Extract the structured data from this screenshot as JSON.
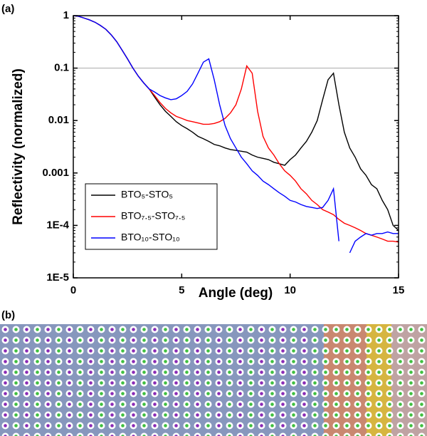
{
  "chart_data": {
    "type": "line",
    "panel_labels": [
      "(a)",
      "(b)"
    ],
    "x_label": "Angle (deg)",
    "y_label": "Reflectivity (normalized)",
    "log_y": true,
    "reference_line": 0.1,
    "legend": "lower left",
    "xlim": [
      0,
      15
    ],
    "xticks": [
      0,
      5,
      10,
      15
    ],
    "ylim": [
      1e-05,
      1
    ],
    "yticks": [
      {
        "value": 1e-05,
        "label": "1E-5"
      },
      {
        "value": 0.0001,
        "label": "1E-4"
      },
      0.001,
      0.01,
      0.1,
      1
    ],
    "x": [
      0,
      0.25,
      0.5,
      0.75,
      1,
      1.25,
      1.5,
      1.75,
      2,
      2.25,
      2.5,
      2.75,
      3,
      3.25,
      3.5,
      3.75,
      4,
      4.25,
      4.5,
      4.75,
      5,
      5.25,
      5.5,
      5.75,
      6,
      6.25,
      6.5,
      6.75,
      7,
      7.25,
      7.5,
      7.75,
      8,
      8.25,
      8.5,
      8.75,
      9,
      9.25,
      9.5,
      9.75,
      10,
      10.25,
      10.5,
      10.75,
      11,
      11.25,
      11.5,
      11.75,
      12,
      12.25,
      12.5,
      12.75,
      13,
      13.25,
      13.5,
      13.75,
      14,
      14.25,
      14.5,
      14.75,
      15
    ],
    "series": [
      {
        "name": "BTO₅-STO₅",
        "color": "#000000",
        "values": [
          1,
          0.97,
          0.9,
          0.83,
          0.75,
          0.65,
          0.55,
          0.43,
          0.32,
          0.22,
          0.15,
          0.1,
          0.07,
          0.052,
          0.04,
          0.028,
          0.02,
          0.015,
          0.012,
          0.0095,
          0.008,
          0.007,
          0.006,
          0.005,
          0.0045,
          0.004,
          0.0035,
          0.0033,
          0.003,
          0.0028,
          0.0027,
          0.0026,
          0.0025,
          0.0022,
          0.002,
          0.0019,
          0.0018,
          0.0016,
          0.0015,
          0.0014,
          0.0018,
          0.0022,
          0.003,
          0.004,
          0.006,
          0.01,
          0.025,
          0.06,
          0.08,
          0.02,
          0.006,
          0.003,
          0.002,
          0.0012,
          0.0009,
          0.0006,
          0.0005,
          0.0003,
          0.0002,
          0.0001,
          8e-05
        ]
      },
      {
        "name": "BTO₇.₅-STO₇.₅",
        "color": "#ff0000",
        "values": [
          1,
          0.97,
          0.9,
          0.83,
          0.75,
          0.65,
          0.55,
          0.43,
          0.32,
          0.22,
          0.15,
          0.1,
          0.07,
          0.052,
          0.04,
          0.03,
          0.022,
          0.017,
          0.014,
          0.012,
          0.011,
          0.01,
          0.0095,
          0.009,
          0.0085,
          0.0085,
          0.0088,
          0.0095,
          0.011,
          0.014,
          0.02,
          0.04,
          0.11,
          0.08,
          0.015,
          0.005,
          0.003,
          0.0022,
          0.0015,
          0.0011,
          0.0009,
          0.0007,
          0.0005,
          0.0004,
          0.0003,
          0.00025,
          0.0002,
          0.00018,
          0.00016,
          0.00013,
          0.00011,
          0.0001,
          9e-05,
          8e-05,
          7e-05,
          6.5e-05,
          6e-05,
          5.5e-05,
          5e-05,
          5e-05,
          4.8e-05
        ]
      },
      {
        "name": "BTO₁₀-STO₁₀",
        "color": "#0000ff",
        "values": [
          1,
          0.97,
          0.9,
          0.83,
          0.75,
          0.65,
          0.55,
          0.43,
          0.32,
          0.22,
          0.15,
          0.1,
          0.07,
          0.052,
          0.04,
          0.035,
          0.03,
          0.027,
          0.025,
          0.026,
          0.03,
          0.036,
          0.05,
          0.08,
          0.13,
          0.15,
          0.06,
          0.02,
          0.008,
          0.0045,
          0.003,
          0.002,
          0.0015,
          0.0011,
          0.0009,
          0.0007,
          0.0006,
          0.0005,
          0.00042,
          0.00036,
          0.0003,
          0.00028,
          0.00025,
          0.00023,
          0.00022,
          0.00021,
          0.00022,
          0.0003,
          0.0005,
          5e-05,
          null,
          3e-05,
          5e-05,
          6e-05,
          7e-05,
          6.5e-05,
          7e-05,
          7e-05,
          7.5e-05,
          7e-05,
          7e-05
        ]
      }
    ]
  }
}
